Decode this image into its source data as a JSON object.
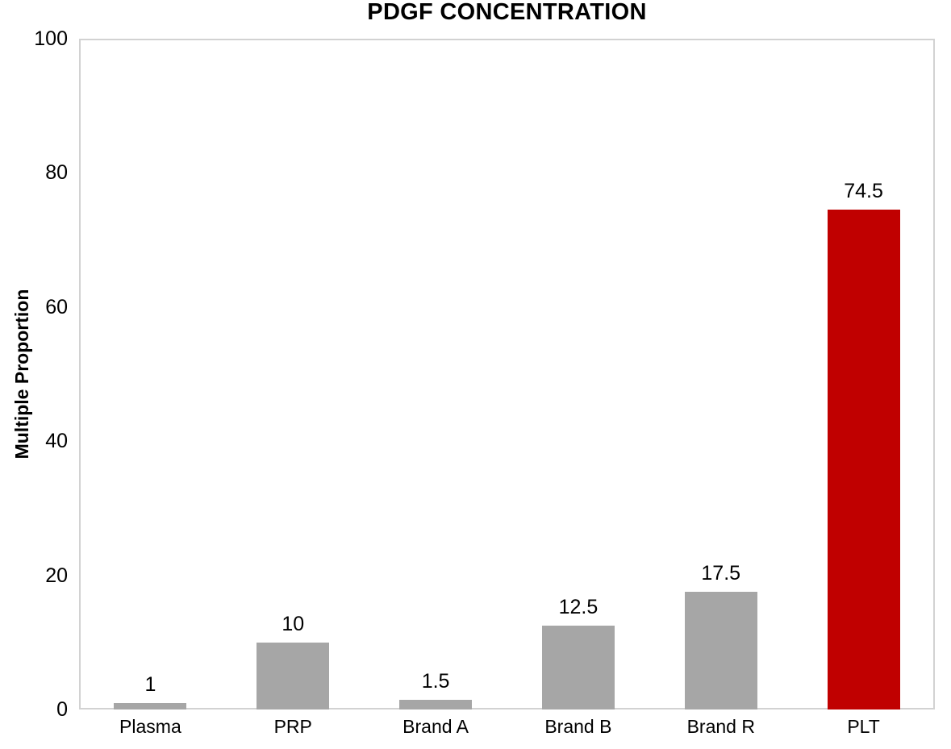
{
  "chart_data": {
    "type": "bar",
    "title": "PDGF CONCENTRATION",
    "xlabel": "",
    "ylabel": "Multiple Proportion",
    "categories": [
      "Plasma",
      "PRP",
      "Brand A",
      "Brand B",
      "Brand R",
      "PLT"
    ],
    "values": [
      1,
      10,
      1.5,
      12.5,
      17.5,
      74.5
    ],
    "data_labels": [
      "1",
      "10",
      "1.5",
      "12.5",
      "17.5",
      "74.5"
    ],
    "bar_colors": [
      "#A6A6A6",
      "#A6A6A6",
      "#A6A6A6",
      "#A6A6A6",
      "#A6A6A6",
      "#C00000"
    ],
    "ylim": [
      0,
      100
    ],
    "yticks": [
      0,
      20,
      40,
      60,
      80,
      100
    ],
    "grid": false,
    "legend": "none",
    "plot_border_color": "#D2D2D2",
    "text_color": "#000000",
    "background_color": "#FFFFFF"
  }
}
